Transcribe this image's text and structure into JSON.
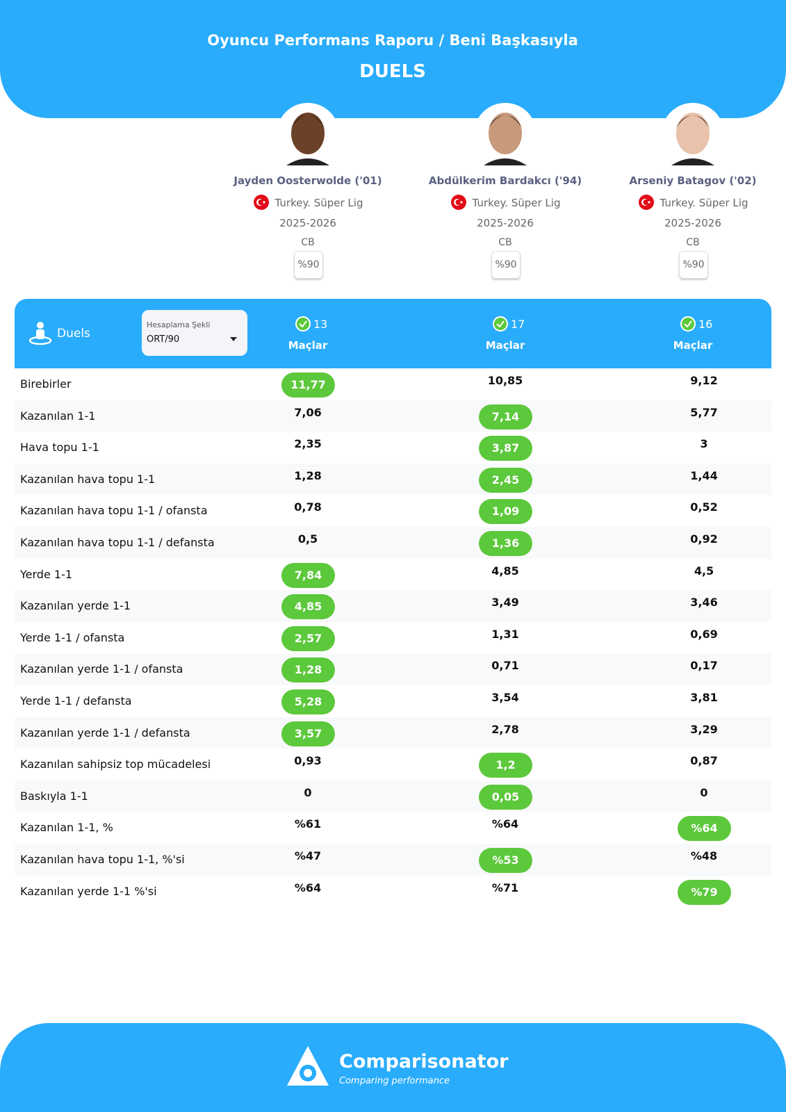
{
  "header": {
    "title": "Oyuncu Performans Raporu / Beni Başkasıyla",
    "subtitle": "DUELS"
  },
  "players": [
    {
      "name": "Jayden Oosterwolde ('01)",
      "league": "Turkey. Süper Lig",
      "season": "2025-2026",
      "position": "CB",
      "mode": "%90",
      "matches": "13",
      "matches_label": "Maçlar"
    },
    {
      "name": "Abdülkerim Bardakcı ('94)",
      "league": "Turkey. Süper Lig",
      "season": "2025-2026",
      "position": "CB",
      "mode": "%90",
      "matches": "17",
      "matches_label": "Maçlar"
    },
    {
      "name": "Arseniy Batagov ('02)",
      "league": "Turkey. Süper Lig",
      "season": "2025-2026",
      "position": "CB",
      "mode": "%90",
      "matches": "16",
      "matches_label": "Maçlar"
    }
  ],
  "panel": {
    "label": "Duels",
    "dropdown_label": "Hesaplama Şekli",
    "dropdown_value": "ORT/90"
  },
  "rows": [
    {
      "label": "Birebirler",
      "values": [
        "11,77",
        "10,85",
        "9,12"
      ],
      "best": 0
    },
    {
      "label": "Kazanılan 1-1",
      "values": [
        "7,06",
        "7,14",
        "5,77"
      ],
      "best": 1
    },
    {
      "label": "Hava topu 1-1",
      "values": [
        "2,35",
        "3,87",
        "3"
      ],
      "best": 1
    },
    {
      "label": "Kazanılan hava topu 1-1",
      "values": [
        "1,28",
        "2,45",
        "1,44"
      ],
      "best": 1
    },
    {
      "label": "Kazanılan hava topu 1-1 / ofansta",
      "values": [
        "0,78",
        "1,09",
        "0,52"
      ],
      "best": 1
    },
    {
      "label": "Kazanılan hava topu 1-1 / defansta",
      "values": [
        "0,5",
        "1,36",
        "0,92"
      ],
      "best": 1
    },
    {
      "label": "Yerde 1-1",
      "values": [
        "7,84",
        "4,85",
        "4,5"
      ],
      "best": 0
    },
    {
      "label": "Kazanılan yerde 1-1",
      "values": [
        "4,85",
        "3,49",
        "3,46"
      ],
      "best": 0
    },
    {
      "label": "Yerde 1-1 / ofansta",
      "values": [
        "2,57",
        "1,31",
        "0,69"
      ],
      "best": 0
    },
    {
      "label": "Kazanılan yerde 1-1 / ofansta",
      "values": [
        "1,28",
        "0,71",
        "0,17"
      ],
      "best": 0
    },
    {
      "label": "Yerde 1-1 / defansta",
      "values": [
        "5,28",
        "3,54",
        "3,81"
      ],
      "best": 0
    },
    {
      "label": "Kazanılan yerde 1-1 / defansta",
      "values": [
        "3,57",
        "2,78",
        "3,29"
      ],
      "best": 0
    },
    {
      "label": "Kazanılan sahipsiz top mücadelesi",
      "values": [
        "0,93",
        "1,2",
        "0,87"
      ],
      "best": 1
    },
    {
      "label": "Baskıyla 1-1",
      "values": [
        "0",
        "0,05",
        "0"
      ],
      "best": 1
    },
    {
      "label": "Kazanılan 1-1, %",
      "values": [
        "%61",
        "%64",
        "%64"
      ],
      "best": 2
    },
    {
      "label": "Kazanılan hava topu 1-1, %'si",
      "values": [
        "%47",
        "%53",
        "%48"
      ],
      "best": 1
    },
    {
      "label": "Kazanılan yerde 1-1 %'si",
      "values": [
        "%64",
        "%71",
        "%79"
      ],
      "best": 2
    }
  ],
  "footer": {
    "brand": "Comparisonator",
    "tagline": "Comparing performance"
  }
}
